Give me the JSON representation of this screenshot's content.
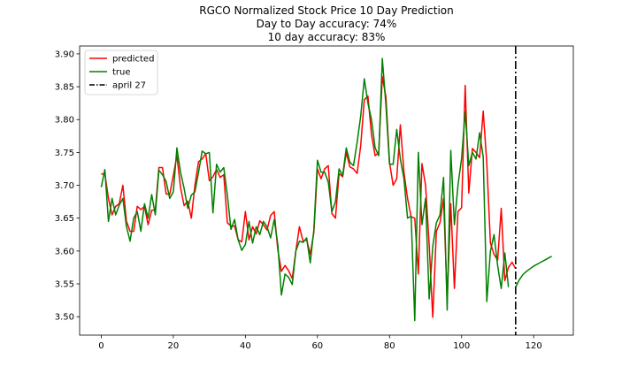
{
  "chart_data": {
    "type": "line",
    "title": [
      "RGCO Normalized Stock Price 10 Day Prediction",
      "Day to Day accuracy: 74%",
      "10 day accuracy: 83%"
    ],
    "xlabel": "",
    "ylabel": "",
    "xlim": [
      -6,
      131
    ],
    "ylim": [
      3.472,
      3.912
    ],
    "xticks": [
      0,
      20,
      40,
      60,
      80,
      100,
      120
    ],
    "yticks": [
      3.5,
      3.55,
      3.6,
      3.65,
      3.7,
      3.75,
      3.8,
      3.85,
      3.9
    ],
    "ytick_labels": [
      "3.50",
      "3.55",
      "3.60",
      "3.65",
      "3.70",
      "3.75",
      "3.80",
      "3.85",
      "3.90"
    ],
    "grid": false,
    "legend_position": "top-left",
    "vline": {
      "x": 115,
      "label": "april 27",
      "style": "dash-dot",
      "color": "#000000"
    },
    "series": [
      {
        "name": "predicted",
        "color": "#ff0000",
        "x_start": 0,
        "values": [
          3.717,
          3.718,
          3.68,
          3.655,
          3.668,
          3.672,
          3.7,
          3.645,
          3.63,
          3.63,
          3.668,
          3.663,
          3.668,
          3.64,
          3.662,
          3.662,
          3.727,
          3.727,
          3.687,
          3.686,
          3.715,
          3.745,
          3.697,
          3.669,
          3.676,
          3.65,
          3.7,
          3.736,
          3.74,
          3.748,
          3.707,
          3.713,
          3.724,
          3.712,
          3.716,
          3.643,
          3.638,
          3.638,
          3.617,
          3.614,
          3.66,
          3.617,
          3.637,
          3.626,
          3.646,
          3.64,
          3.632,
          3.654,
          3.66,
          3.602,
          3.569,
          3.578,
          3.57,
          3.558,
          3.6,
          3.637,
          3.615,
          3.617,
          3.595,
          3.628,
          3.725,
          3.71,
          3.725,
          3.73,
          3.657,
          3.65,
          3.718,
          3.713,
          3.75,
          3.728,
          3.725,
          3.718,
          3.76,
          3.83,
          3.836,
          3.777,
          3.745,
          3.75,
          3.865,
          3.835,
          3.735,
          3.7,
          3.71,
          3.792,
          3.72,
          3.68,
          3.652,
          3.65,
          3.565,
          3.733,
          3.7,
          3.61,
          3.499,
          3.63,
          3.643,
          3.68,
          3.525,
          3.672,
          3.543,
          3.66,
          3.666,
          3.852,
          3.688,
          3.756,
          3.75,
          3.742,
          3.813,
          3.733,
          3.612,
          3.595,
          3.586,
          3.665,
          3.555,
          3.575,
          3.583,
          3.573
        ]
      },
      {
        "name": "true",
        "color": "#008000",
        "x_start": 0,
        "values": [
          3.697,
          3.724,
          3.645,
          3.68,
          3.655,
          3.67,
          3.68,
          3.637,
          3.615,
          3.65,
          3.66,
          3.63,
          3.672,
          3.65,
          3.686,
          3.655,
          3.723,
          3.716,
          3.706,
          3.68,
          3.69,
          3.757,
          3.72,
          3.695,
          3.665,
          3.685,
          3.69,
          3.72,
          3.752,
          3.748,
          3.75,
          3.658,
          3.732,
          3.72,
          3.727,
          3.685,
          3.633,
          3.648,
          3.617,
          3.601,
          3.61,
          3.645,
          3.612,
          3.637,
          3.625,
          3.645,
          3.637,
          3.62,
          3.648,
          3.61,
          3.533,
          3.565,
          3.56,
          3.549,
          3.6,
          3.615,
          3.613,
          3.62,
          3.582,
          3.632,
          3.738,
          3.72,
          3.72,
          3.705,
          3.66,
          3.675,
          3.725,
          3.715,
          3.757,
          3.735,
          3.73,
          3.765,
          3.805,
          3.862,
          3.825,
          3.8,
          3.757,
          3.745,
          3.893,
          3.822,
          3.732,
          3.732,
          3.785,
          3.74,
          3.71,
          3.65,
          3.653,
          3.494,
          3.75,
          3.64,
          3.68,
          3.527,
          3.607,
          3.643,
          3.655,
          3.712,
          3.51,
          3.753,
          3.64,
          3.7,
          3.741,
          3.812,
          3.73,
          3.75,
          3.74,
          3.78,
          3.743,
          3.523,
          3.6,
          3.625,
          3.578,
          3.543,
          3.597,
          3.545
        ]
      },
      {
        "name": "",
        "color": "#008000",
        "x_start": 115,
        "values": [
          3.545,
          3.556,
          3.564,
          3.569,
          3.573,
          3.577,
          3.58,
          3.583,
          3.586,
          3.589,
          3.592
        ]
      }
    ]
  }
}
